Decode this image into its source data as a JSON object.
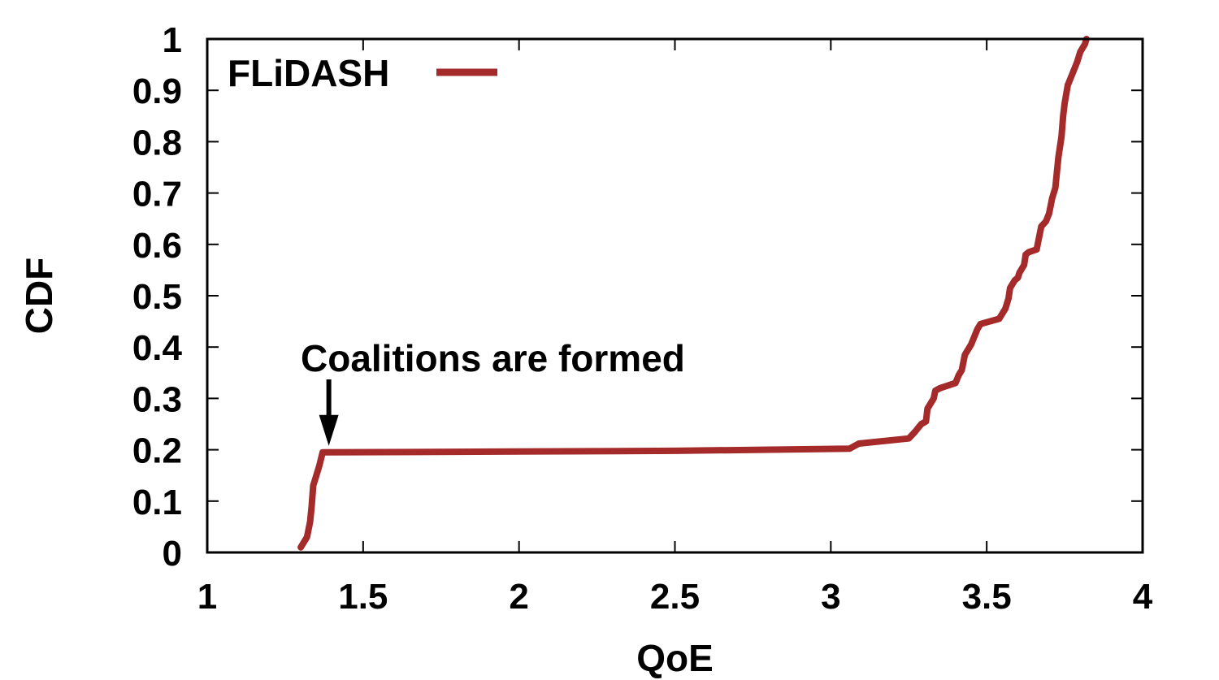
{
  "chart_data": {
    "type": "line",
    "xlabel": "QoE",
    "ylabel": "CDF",
    "xlim": [
      1,
      4
    ],
    "ylim": [
      0,
      1
    ],
    "x_ticks": [
      1,
      1.5,
      2,
      2.5,
      3,
      3.5,
      4
    ],
    "x_tick_labels": [
      "1",
      "1.5",
      "2",
      "2.5",
      "3",
      "3.5",
      "4"
    ],
    "y_ticks": [
      0,
      0.1,
      0.2,
      0.3,
      0.4,
      0.5,
      0.6,
      0.7,
      0.8,
      0.9,
      1
    ],
    "y_tick_labels": [
      "0",
      "0.1",
      "0.2",
      "0.3",
      "0.4",
      "0.5",
      "0.6",
      "0.7",
      "0.8",
      "0.9",
      "1"
    ],
    "grid": false,
    "legend_position": "top-left",
    "series": [
      {
        "name": "FLiDASH",
        "color": "#a52a2a",
        "points": [
          [
            1.3,
            0.01
          ],
          [
            1.32,
            0.03
          ],
          [
            1.33,
            0.06
          ],
          [
            1.335,
            0.09
          ],
          [
            1.34,
            0.13
          ],
          [
            1.35,
            0.15
          ],
          [
            1.36,
            0.17
          ],
          [
            1.37,
            0.195
          ],
          [
            1.8,
            0.196
          ],
          [
            2.5,
            0.198
          ],
          [
            3.06,
            0.202
          ],
          [
            3.09,
            0.212
          ],
          [
            3.25,
            0.222
          ],
          [
            3.27,
            0.235
          ],
          [
            3.29,
            0.25
          ],
          [
            3.305,
            0.255
          ],
          [
            3.31,
            0.28
          ],
          [
            3.33,
            0.3
          ],
          [
            3.335,
            0.315
          ],
          [
            3.35,
            0.32
          ],
          [
            3.4,
            0.33
          ],
          [
            3.41,
            0.345
          ],
          [
            3.42,
            0.355
          ],
          [
            3.43,
            0.385
          ],
          [
            3.45,
            0.405
          ],
          [
            3.46,
            0.42
          ],
          [
            3.47,
            0.435
          ],
          [
            3.48,
            0.445
          ],
          [
            3.54,
            0.455
          ],
          [
            3.545,
            0.46
          ],
          [
            3.56,
            0.475
          ],
          [
            3.57,
            0.495
          ],
          [
            3.575,
            0.515
          ],
          [
            3.59,
            0.53
          ],
          [
            3.6,
            0.535
          ],
          [
            3.605,
            0.545
          ],
          [
            3.62,
            0.56
          ],
          [
            3.625,
            0.58
          ],
          [
            3.635,
            0.585
          ],
          [
            3.66,
            0.59
          ],
          [
            3.665,
            0.605
          ],
          [
            3.67,
            0.62
          ],
          [
            3.675,
            0.635
          ],
          [
            3.69,
            0.645
          ],
          [
            3.7,
            0.66
          ],
          [
            3.71,
            0.69
          ],
          [
            3.72,
            0.71
          ],
          [
            3.725,
            0.74
          ],
          [
            3.73,
            0.77
          ],
          [
            3.74,
            0.81
          ],
          [
            3.745,
            0.85
          ],
          [
            3.75,
            0.875
          ],
          [
            3.76,
            0.91
          ],
          [
            3.78,
            0.94
          ],
          [
            3.79,
            0.955
          ],
          [
            3.8,
            0.975
          ],
          [
            3.815,
            0.99
          ],
          [
            3.82,
            1.0
          ]
        ]
      }
    ],
    "annotations": [
      {
        "text": "Coalitions are formed",
        "x": 1.39,
        "y": 0.195
      }
    ]
  }
}
